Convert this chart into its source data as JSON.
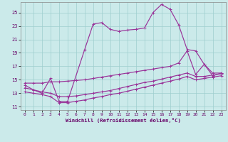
{
  "xlabel": "Windchill (Refroidissement éolien,°C)",
  "bg_color": "#cbeaea",
  "grid_color": "#9ecece",
  "line_color": "#993399",
  "xlim": [
    -0.5,
    23.5
  ],
  "ylim": [
    10.5,
    26.5
  ],
  "xticks": [
    0,
    1,
    2,
    3,
    4,
    5,
    6,
    7,
    8,
    9,
    10,
    11,
    12,
    13,
    14,
    15,
    16,
    17,
    18,
    19,
    20,
    21,
    22,
    23
  ],
  "yticks": [
    11,
    13,
    15,
    17,
    19,
    21,
    23,
    25
  ],
  "line1_x": [
    0,
    1,
    2,
    3,
    4,
    5,
    7,
    8,
    9,
    10,
    11,
    12,
    13,
    14,
    15,
    16,
    17,
    18,
    19,
    20,
    21,
    22,
    23
  ],
  "line1_y": [
    14.2,
    13.5,
    13.0,
    15.2,
    11.8,
    11.8,
    19.5,
    23.3,
    23.5,
    22.5,
    22.2,
    22.4,
    22.5,
    22.7,
    25.0,
    26.2,
    25.5,
    23.2,
    19.5,
    19.3,
    17.3,
    16.0,
    16.0
  ],
  "line2_x": [
    0,
    1,
    2,
    3,
    4,
    5,
    6,
    7,
    8,
    9,
    10,
    11,
    12,
    13,
    14,
    15,
    16,
    17,
    18,
    19,
    20,
    21,
    22,
    23
  ],
  "line2_y": [
    14.5,
    14.5,
    14.5,
    14.7,
    14.7,
    14.8,
    14.9,
    15.0,
    15.2,
    15.4,
    15.6,
    15.8,
    16.0,
    16.2,
    16.4,
    16.6,
    16.8,
    17.0,
    17.5,
    19.3,
    15.8,
    17.3,
    15.6,
    16.0
  ],
  "line3_x": [
    0,
    1,
    2,
    3,
    4,
    5,
    6,
    7,
    8,
    9,
    10,
    11,
    12,
    13,
    14,
    15,
    16,
    17,
    18,
    19,
    20,
    21,
    22,
    23
  ],
  "line3_y": [
    13.8,
    13.5,
    13.2,
    13.0,
    12.5,
    12.5,
    12.6,
    12.8,
    13.0,
    13.2,
    13.4,
    13.7,
    14.0,
    14.3,
    14.6,
    14.8,
    15.1,
    15.4,
    15.7,
    16.0,
    15.5,
    15.5,
    15.7,
    15.9
  ],
  "line4_x": [
    0,
    1,
    2,
    3,
    4,
    5,
    6,
    7,
    8,
    9,
    10,
    11,
    12,
    13,
    14,
    15,
    16,
    17,
    18,
    19,
    20,
    21,
    22,
    23
  ],
  "line4_y": [
    13.2,
    13.0,
    12.8,
    12.5,
    11.6,
    11.6,
    11.8,
    12.0,
    12.3,
    12.5,
    12.8,
    13.0,
    13.3,
    13.6,
    13.9,
    14.2,
    14.5,
    14.8,
    15.1,
    15.5,
    15.0,
    15.2,
    15.4,
    15.6
  ]
}
